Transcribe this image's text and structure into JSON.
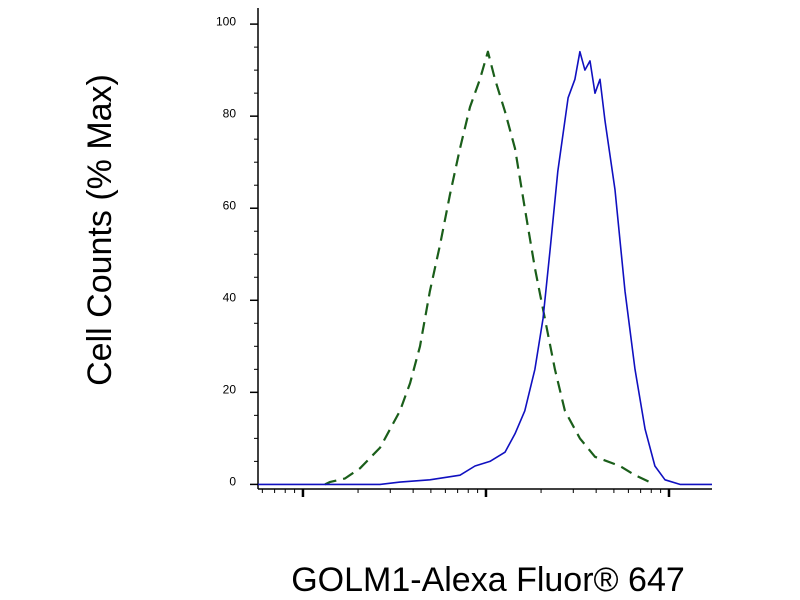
{
  "chart_data": {
    "type": "line",
    "x_label": "GOLM1-Alexa Fluor® 647",
    "y_label": "Cell Counts (% Max)",
    "xscale": "log",
    "xlim": [
      5.68,
      1718
    ],
    "xticks": [
      10,
      100,
      1000
    ],
    "ylim": [
      -1,
      103.5
    ],
    "yticks": [
      0,
      20,
      40,
      60,
      80,
      100
    ],
    "series": [
      {
        "color": "#1a5e1a",
        "dashed": true,
        "x": [
          13.2,
          14.0,
          17.0,
          20.5,
          26.4,
          33.9,
          38.5,
          43.6,
          49.4,
          56.1,
          63.6,
          72.1,
          81.8,
          92.7,
          102.5,
          112,
          127,
          144,
          163,
          185,
          210,
          238,
          270,
          326,
          394,
          540,
          652,
          787
        ],
        "values": [
          0,
          0.5,
          1.3,
          3.5,
          8,
          16,
          22,
          30,
          42,
          52,
          63,
          73,
          82,
          88,
          94,
          88,
          81,
          73,
          60,
          47,
          36,
          25,
          16,
          10,
          6,
          4,
          2,
          0.5
        ]
      },
      {
        "color": "#1010c0",
        "dashed": false,
        "x": [
          5.68,
          26.4,
          33.9,
          49.4,
          72.1,
          87.1,
          105,
          127,
          144,
          163,
          185,
          205,
          224,
          247,
          281,
          306,
          326,
          347,
          370,
          394,
          420,
          447,
          507,
          575,
          652,
          740,
          838,
          951,
          1148,
          1718
        ],
        "values": [
          0,
          0,
          0.5,
          1,
          2,
          4,
          5,
          7,
          11,
          16,
          25,
          36,
          51,
          68,
          84,
          88,
          94,
          90,
          92,
          85,
          88,
          79,
          64,
          42,
          25,
          12,
          4,
          1,
          0,
          0
        ]
      }
    ]
  }
}
